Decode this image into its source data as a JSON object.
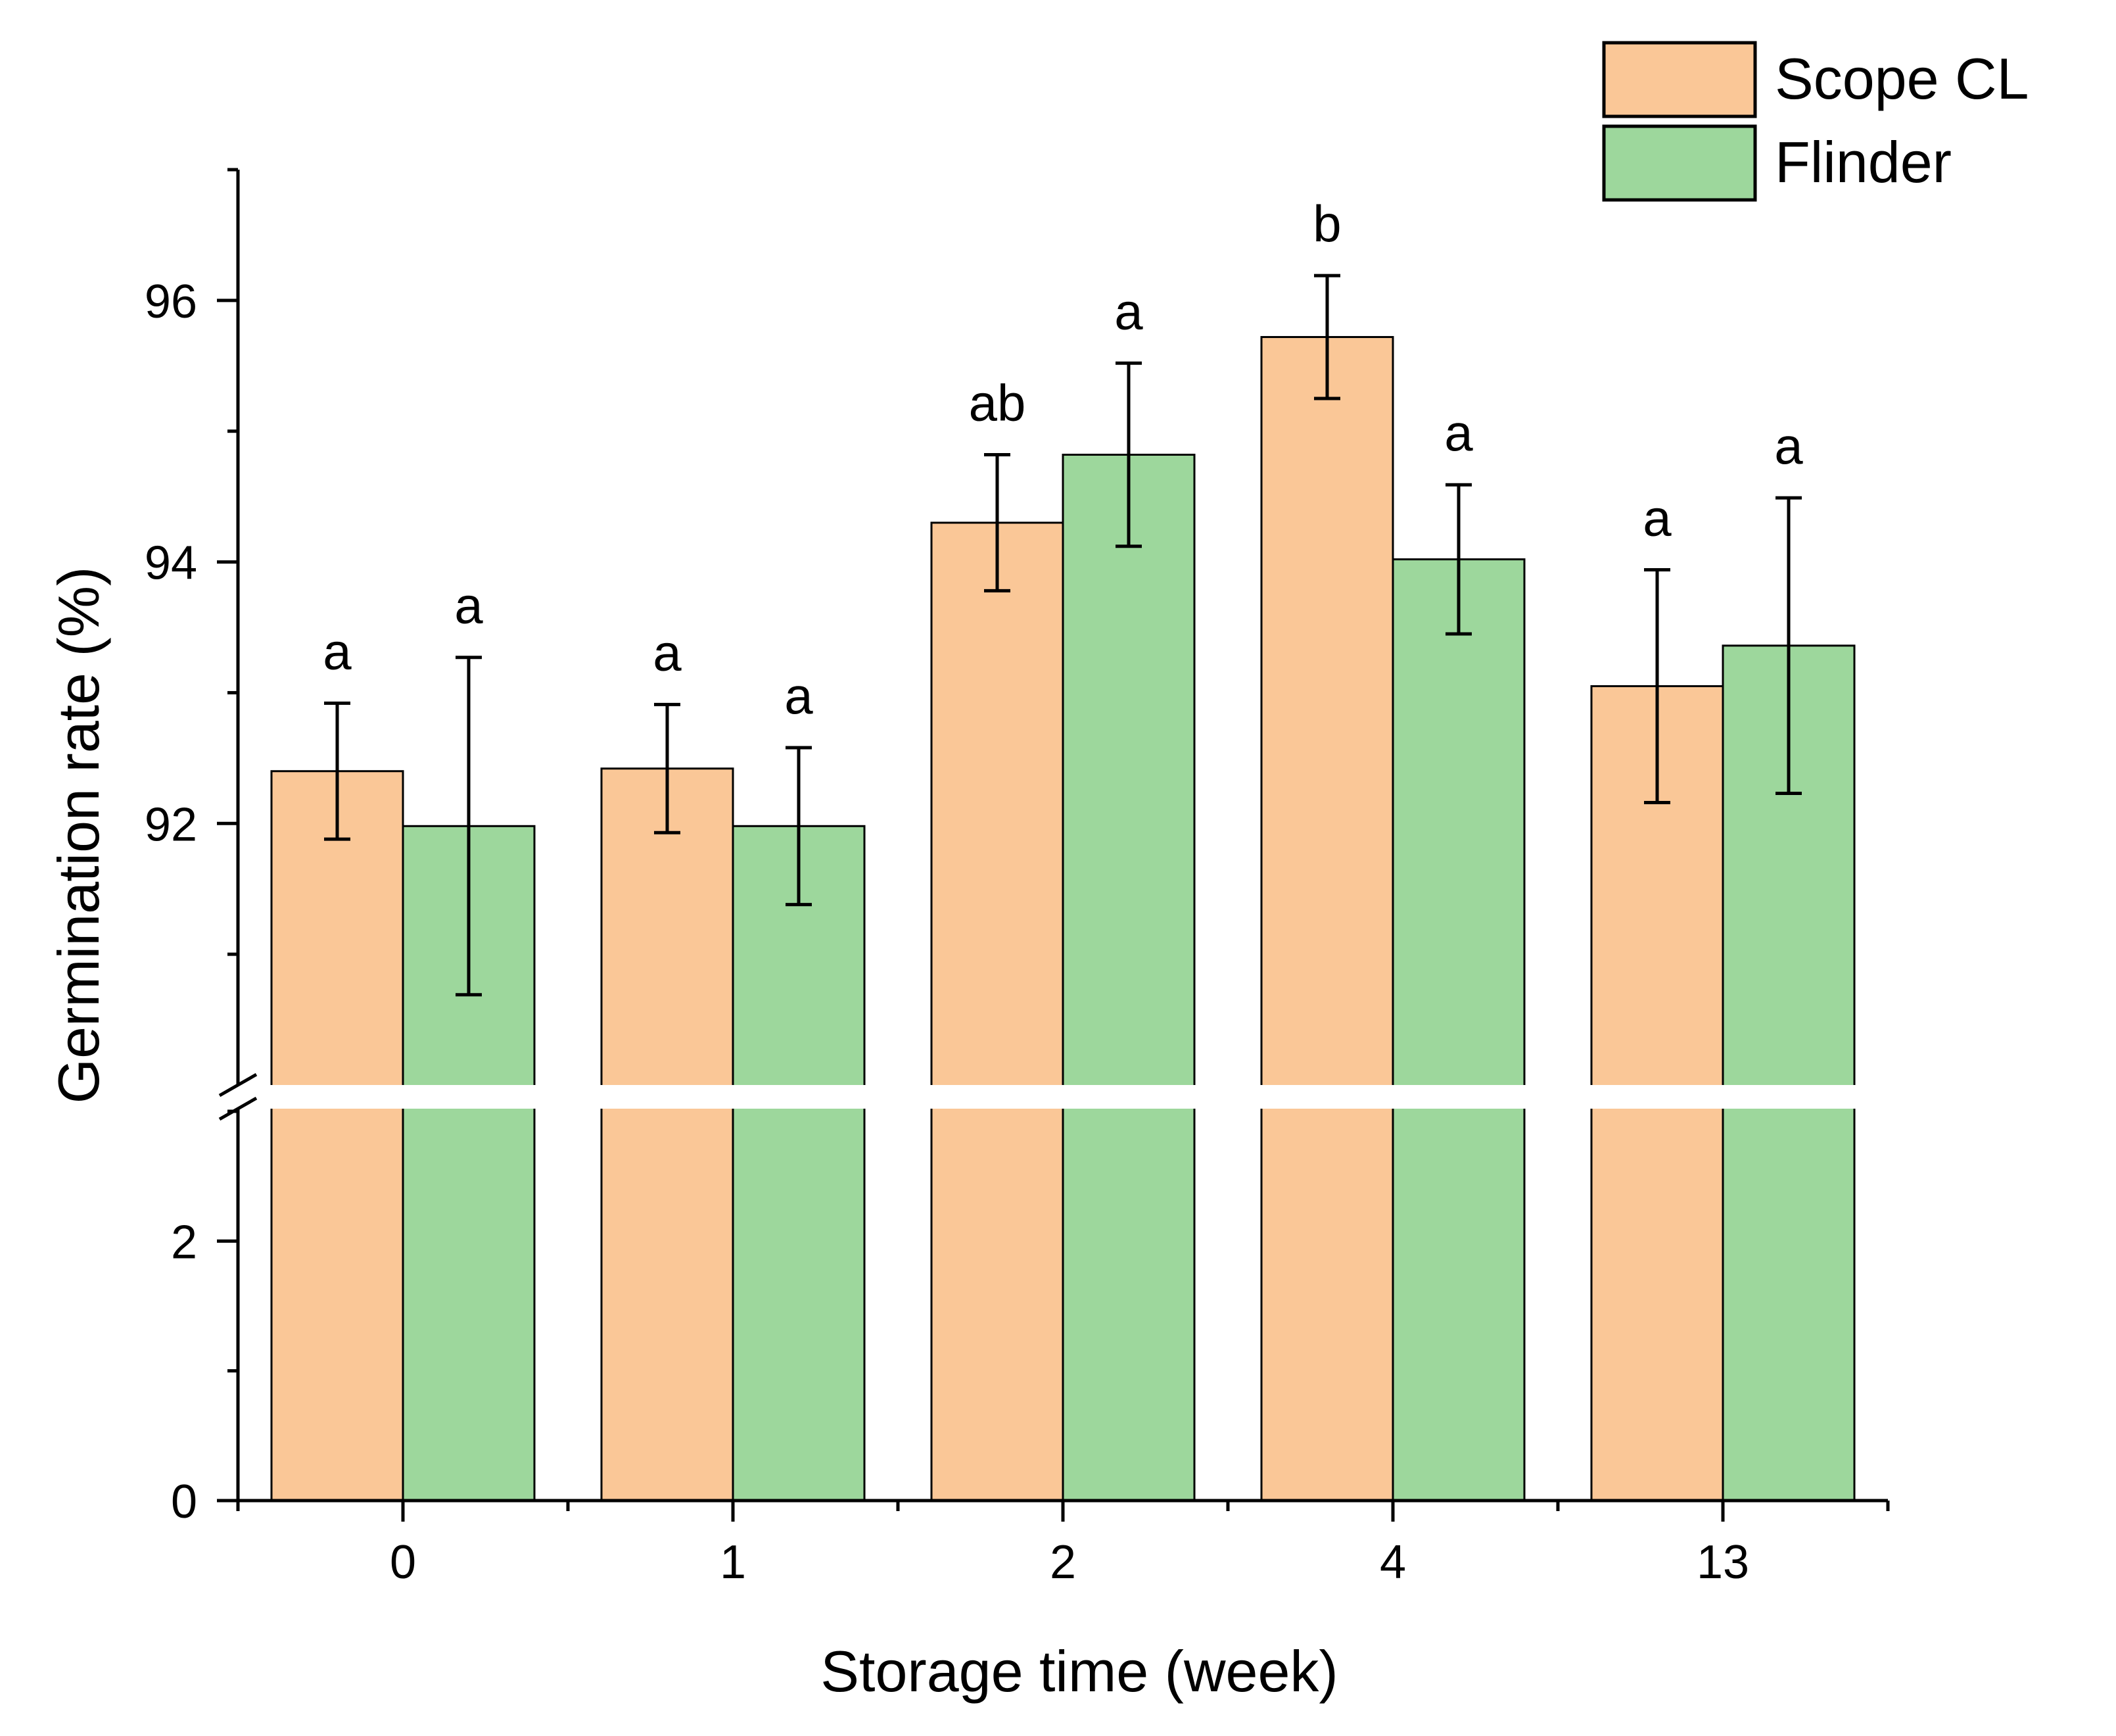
{
  "chart_data": {
    "type": "bar",
    "xlabel": "Storage time (week)",
    "ylabel": "Germination rate (%)",
    "categories": [
      "0",
      "1",
      "2",
      "4",
      "13"
    ],
    "y_axis": {
      "broken": true,
      "lower_range": [
        0,
        3
      ],
      "upper_range": [
        90,
        97
      ],
      "ticks": [
        0,
        2,
        92,
        94,
        96
      ],
      "tick_labels": [
        "0",
        "2",
        "92",
        "94",
        "96"
      ]
    },
    "series": [
      {
        "name": "Scope CL",
        "color": "#FAC797",
        "values": [
          92.4,
          92.42,
          94.3,
          95.72,
          93.05
        ],
        "errors": [
          0.52,
          0.49,
          0.52,
          0.47,
          0.89
        ],
        "labels": [
          "a",
          "a",
          "ab",
          "b",
          "a"
        ]
      },
      {
        "name": "Flinder",
        "color": "#9DD79C",
        "values": [
          91.98,
          91.98,
          94.82,
          94.02,
          93.36
        ],
        "errors": [
          1.29,
          0.6,
          0.7,
          0.57,
          1.13
        ],
        "labels": [
          "a",
          "a",
          "a",
          "a",
          "a"
        ]
      }
    ],
    "legend": {
      "position": "top-right",
      "entries": [
        "Scope CL",
        "Flinder"
      ]
    }
  }
}
